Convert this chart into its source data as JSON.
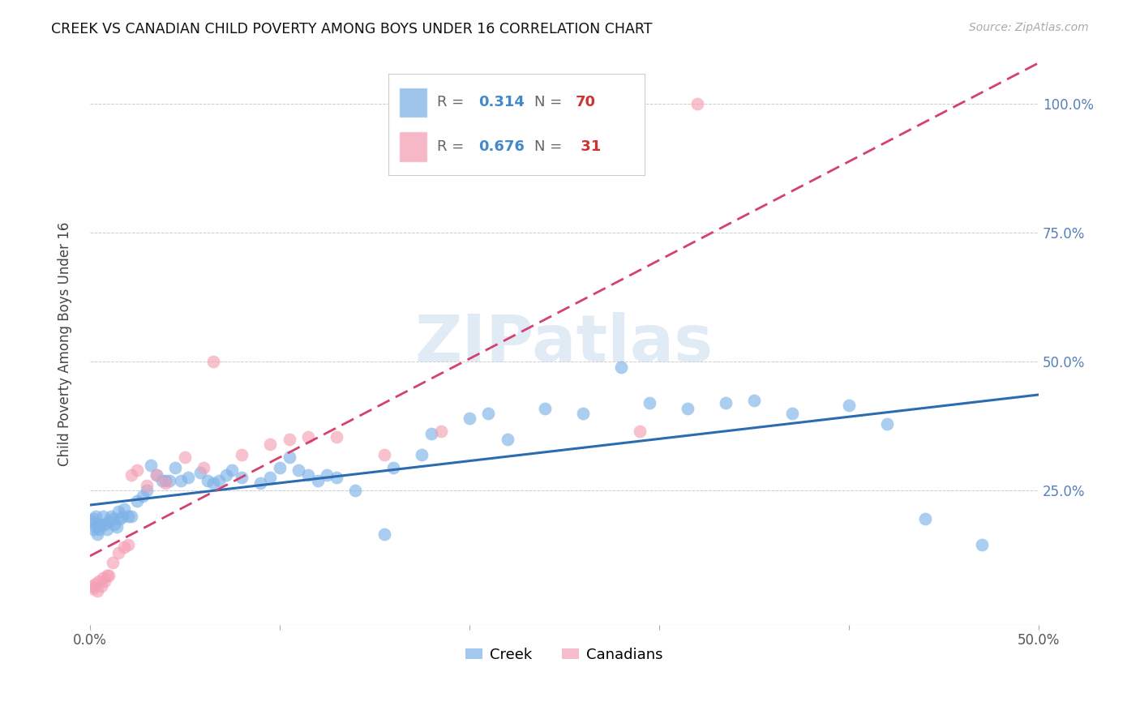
{
  "title": "CREEK VS CANADIAN CHILD POVERTY AMONG BOYS UNDER 16 CORRELATION CHART",
  "source": "Source: ZipAtlas.com",
  "ylabel": "Child Poverty Among Boys Under 16",
  "xlim": [
    0.0,
    0.5
  ],
  "ylim": [
    -0.01,
    1.08
  ],
  "creek_R": "0.314",
  "creek_N": "70",
  "canadians_R": "0.676",
  "canadians_N": "31",
  "creek_color": "#7EB3E8",
  "canadians_color": "#F4A0B5",
  "creek_line_color": "#2B6CB0",
  "canadians_line_color": "#D44070",
  "watermark_color": "#C8DCF0",
  "creek_x": [
    0.001,
    0.002,
    0.002,
    0.003,
    0.003,
    0.004,
    0.004,
    0.005,
    0.006,
    0.007,
    0.008,
    0.009,
    0.01,
    0.011,
    0.012,
    0.013,
    0.014,
    0.015,
    0.016,
    0.017,
    0.018,
    0.02,
    0.022,
    0.025,
    0.028,
    0.03,
    0.032,
    0.035,
    0.038,
    0.04,
    0.042,
    0.045,
    0.048,
    0.052,
    0.058,
    0.062,
    0.065,
    0.068,
    0.072,
    0.075,
    0.08,
    0.09,
    0.095,
    0.1,
    0.105,
    0.11,
    0.115,
    0.12,
    0.125,
    0.13,
    0.14,
    0.155,
    0.16,
    0.175,
    0.18,
    0.2,
    0.21,
    0.22,
    0.24,
    0.26,
    0.28,
    0.295,
    0.315,
    0.335,
    0.35,
    0.37,
    0.4,
    0.42,
    0.44,
    0.47
  ],
  "creek_y": [
    0.19,
    0.175,
    0.195,
    0.18,
    0.2,
    0.165,
    0.185,
    0.175,
    0.185,
    0.2,
    0.185,
    0.175,
    0.19,
    0.2,
    0.195,
    0.185,
    0.18,
    0.21,
    0.195,
    0.2,
    0.215,
    0.2,
    0.2,
    0.23,
    0.24,
    0.25,
    0.3,
    0.28,
    0.27,
    0.27,
    0.27,
    0.295,
    0.27,
    0.275,
    0.285,
    0.27,
    0.265,
    0.27,
    0.28,
    0.29,
    0.275,
    0.265,
    0.275,
    0.295,
    0.315,
    0.29,
    0.28,
    0.27,
    0.28,
    0.275,
    0.25,
    0.165,
    0.295,
    0.32,
    0.36,
    0.39,
    0.4,
    0.35,
    0.41,
    0.4,
    0.49,
    0.42,
    0.41,
    0.42,
    0.425,
    0.4,
    0.415,
    0.38,
    0.195,
    0.145
  ],
  "canadians_x": [
    0.001,
    0.002,
    0.003,
    0.004,
    0.005,
    0.006,
    0.007,
    0.008,
    0.009,
    0.01,
    0.012,
    0.015,
    0.018,
    0.02,
    0.022,
    0.025,
    0.03,
    0.035,
    0.04,
    0.05,
    0.06,
    0.065,
    0.08,
    0.095,
    0.105,
    0.115,
    0.13,
    0.155,
    0.185,
    0.29,
    0.32
  ],
  "canadians_y": [
    0.065,
    0.06,
    0.07,
    0.055,
    0.075,
    0.065,
    0.08,
    0.075,
    0.085,
    0.085,
    0.11,
    0.13,
    0.14,
    0.145,
    0.28,
    0.29,
    0.26,
    0.28,
    0.265,
    0.315,
    0.295,
    0.5,
    0.32,
    0.34,
    0.35,
    0.355,
    0.355,
    0.32,
    0.365,
    0.365,
    1.0
  ]
}
